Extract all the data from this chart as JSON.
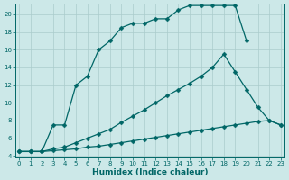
{
  "xlabel": "Humidex (Indice chaleur)",
  "bg_color": "#cce8e8",
  "grid_color": "#aacccc",
  "line_color": "#006666",
  "xlim_min": -0.3,
  "xlim_max": 23.3,
  "ylim_min": 3.8,
  "ylim_max": 21.2,
  "yticks": [
    4,
    6,
    8,
    10,
    12,
    14,
    16,
    18,
    20
  ],
  "xticks": [
    0,
    1,
    2,
    3,
    4,
    5,
    6,
    7,
    8,
    9,
    10,
    11,
    12,
    13,
    14,
    15,
    16,
    17,
    18,
    19,
    20,
    21,
    22,
    23
  ],
  "line1_x": [
    0,
    1,
    2,
    3,
    4,
    5,
    6,
    7,
    8,
    9,
    10,
    11,
    12,
    13,
    14,
    15,
    16,
    17,
    18,
    19,
    20,
    21,
    22,
    23
  ],
  "line1_y": [
    4.5,
    4.5,
    4.5,
    4.6,
    4.7,
    4.8,
    5.0,
    5.1,
    5.3,
    5.5,
    5.7,
    5.9,
    6.1,
    6.3,
    6.5,
    6.7,
    6.9,
    7.1,
    7.3,
    7.5,
    7.7,
    7.9,
    8.0,
    7.5
  ],
  "line2_x": [
    0,
    1,
    2,
    3,
    4,
    5,
    6,
    7,
    8,
    9,
    10,
    11,
    12,
    13,
    14,
    15,
    16,
    17,
    18,
    19,
    20,
    21,
    22,
    23
  ],
  "line2_y": [
    4.5,
    4.5,
    4.5,
    4.8,
    5.0,
    5.5,
    6.0,
    6.5,
    7.0,
    7.8,
    8.5,
    9.2,
    10.0,
    10.8,
    11.5,
    12.2,
    13.0,
    14.0,
    15.5,
    13.5,
    11.5,
    9.5,
    8.0,
    7.5
  ],
  "line3_x": [
    0,
    1,
    2,
    3,
    4,
    5,
    6,
    7,
    8,
    9,
    10,
    11,
    12,
    13,
    14,
    15,
    16,
    17,
    18,
    19,
    20
  ],
  "line3_y": [
    4.5,
    4.5,
    4.5,
    7.5,
    7.5,
    12.0,
    13.0,
    16.0,
    17.0,
    18.5,
    19.0,
    19.0,
    19.5,
    19.5,
    20.5,
    21.0,
    21.0,
    21.0,
    21.0,
    21.0,
    17.0
  ],
  "markersize": 2.5,
  "linewidth": 0.9
}
